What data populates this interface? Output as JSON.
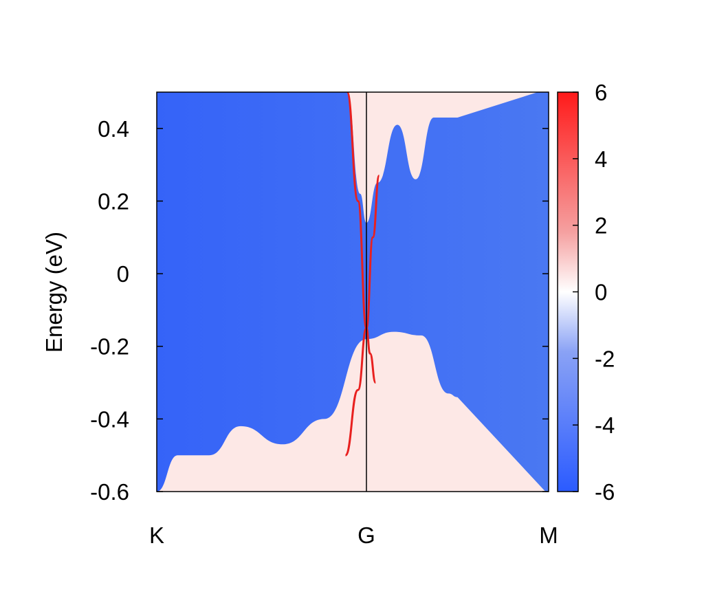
{
  "chart_data": {
    "type": "heatmap",
    "title": "",
    "ylabel": "Energy (eV)",
    "xlabel": "",
    "x_ticks": [
      "K",
      "G",
      "M"
    ],
    "y_ticks": [
      0.4,
      0.2,
      0,
      -0.2,
      -0.4,
      -0.6
    ],
    "y_tick_labels": [
      "0.4",
      "0.2",
      "0",
      "-0.2",
      "-0.4",
      "-0.6"
    ],
    "ylim": [
      -0.6,
      0.5
    ],
    "colorbar": {
      "range": [
        -6,
        6
      ],
      "ticks": [
        6,
        4,
        2,
        0,
        -2,
        -4,
        -6
      ],
      "tick_labels": [
        "6",
        "4",
        "2",
        "0",
        "-2",
        "-4",
        "-6"
      ],
      "colors": {
        "low": "#2b5bff",
        "mid": "#ffffff",
        "high": "#ff1a1a"
      }
    },
    "surface_bands": [
      {
        "name": "",
        "points": [
          [
            -0.092,
            0.5
          ],
          [
            -0.04,
            0.2
          ],
          [
            0,
            -0.15
          ],
          [
            0.02,
            -0.22
          ],
          [
            0.05,
            -0.3
          ]
        ]
      },
      {
        "name": "",
        "points": [
          [
            -0.1,
            -0.5
          ],
          [
            -0.04,
            -0.32
          ],
          [
            0,
            -0.15
          ],
          [
            0.035,
            0.1
          ],
          [
            0.07,
            0.27
          ]
        ]
      }
    ],
    "bulk_edges": {
      "conduction": [
        [
          -0.092,
          0.5
        ],
        [
          -0.03,
          0.22
        ],
        [
          0,
          0.14
        ],
        [
          0.06,
          0.25
        ],
        [
          0.17,
          0.41
        ],
        [
          0.27,
          0.26
        ],
        [
          0.37,
          0.43
        ],
        [
          0.5,
          0.43
        ]
      ],
      "valence": [
        [
          -1.0,
          -0.6
        ],
        [
          -0.9,
          -0.5
        ],
        [
          -0.75,
          -0.5
        ],
        [
          -0.6,
          -0.42
        ],
        [
          -0.4,
          -0.47
        ],
        [
          -0.2,
          -0.4
        ],
        [
          0,
          -0.18
        ],
        [
          0.15,
          -0.16
        ],
        [
          0.3,
          -0.17
        ],
        [
          0.45,
          -0.33
        ],
        [
          0.5,
          -0.34
        ]
      ]
    }
  }
}
